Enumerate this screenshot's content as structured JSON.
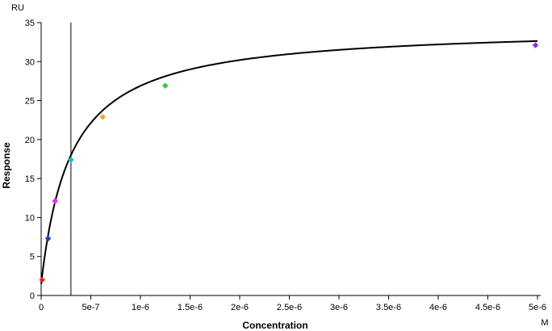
{
  "chart_data": {
    "type": "scatter",
    "xlabel": "Concentration",
    "ylabel": "Response",
    "x_unit": "M",
    "y_unit": "RU",
    "xlim": [
      0,
      5e-06
    ],
    "ylim": [
      0,
      35
    ],
    "x_ticks": [
      0,
      5e-07,
      1e-06,
      1.5e-06,
      2e-06,
      2.5e-06,
      3e-06,
      3.5e-06,
      4e-06,
      4.5e-06,
      5e-06
    ],
    "x_tick_labels": [
      "0",
      "5e-7",
      "1e-6",
      "1.5e-6",
      "2e-6",
      "2.5e-6",
      "3e-6",
      "3.5e-6",
      "4e-6",
      "4.5e-6",
      "5e-6"
    ],
    "y_ticks": [
      0,
      5,
      10,
      15,
      20,
      25,
      30,
      35
    ],
    "y_tick_labels": [
      "0",
      "5",
      "10",
      "15",
      "20",
      "25",
      "30",
      "35"
    ],
    "grid": false,
    "points": [
      {
        "x": 1e-08,
        "y": 2.0,
        "color": "#e8262a"
      },
      {
        "x": 7e-08,
        "y": 7.3,
        "color": "#1f3ad6"
      },
      {
        "x": 1.4e-07,
        "y": 12.1,
        "color": "#e62de8"
      },
      {
        "x": 3e-07,
        "y": 17.4,
        "color": "#19bfc7"
      },
      {
        "x": 6.2e-07,
        "y": 22.9,
        "color": "#f2a43a"
      },
      {
        "x": 1.25e-06,
        "y": 26.9,
        "color": "#3cc63c"
      },
      {
        "x": 4.98e-06,
        "y": 32.1,
        "color": "#8a35e0"
      }
    ],
    "fit_curve": {
      "type": "langmuir",
      "rmax": 34.5,
      "kd": 3e-07,
      "offset": 1.5,
      "color": "#000000"
    },
    "vertical_line_x": 3e-07
  }
}
